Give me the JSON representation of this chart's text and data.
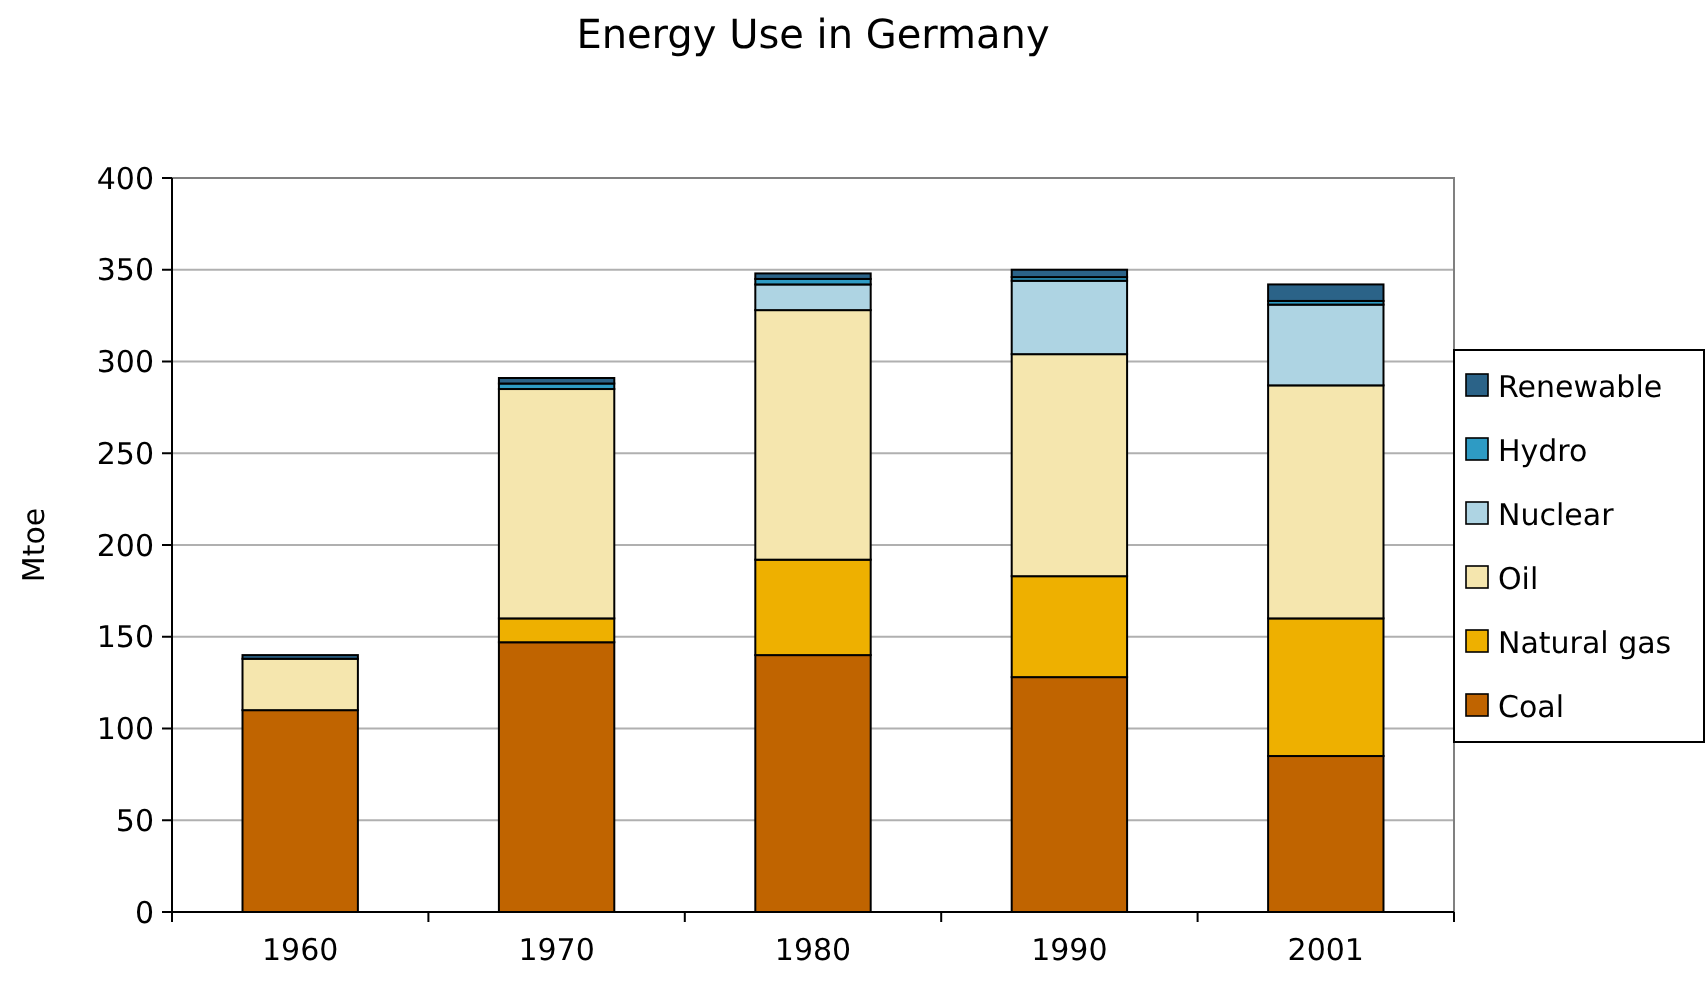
{
  "chart_data": {
    "type": "bar",
    "title": "Energy Use in Germany",
    "ylabel": "Mtoe",
    "categories": [
      "1960",
      "1970",
      "1980",
      "1990",
      "2001"
    ],
    "stacked": true,
    "ylim": [
      0,
      400
    ],
    "yticks": [
      0,
      50,
      100,
      150,
      200,
      250,
      300,
      350,
      400
    ],
    "grid": "y",
    "legend": "right",
    "series": [
      {
        "name": "Coal",
        "color": "#c06400",
        "values": [
          110,
          147,
          140,
          128,
          85
        ]
      },
      {
        "name": "Natural gas",
        "color": "#eeb000",
        "values": [
          0,
          13,
          52,
          55,
          75
        ]
      },
      {
        "name": "Oil",
        "color": "#f5e6ae",
        "values": [
          28,
          125,
          136,
          121,
          127
        ]
      },
      {
        "name": "Nuclear",
        "color": "#aed4e3",
        "values": [
          0,
          0,
          14,
          40,
          44
        ]
      },
      {
        "name": "Hydro",
        "color": "#2e9bc4",
        "values": [
          null,
          3,
          3,
          2,
          2
        ]
      },
      {
        "name": "Renewable",
        "color": "#2b6388",
        "values": [
          2,
          3,
          3,
          4,
          9
        ]
      }
    ]
  }
}
